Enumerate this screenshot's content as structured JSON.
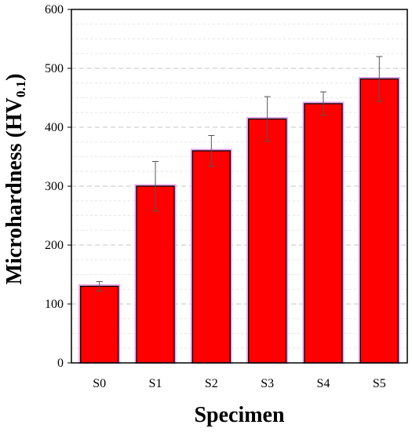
{
  "chart_data": {
    "type": "bar",
    "categories": [
      "S0",
      "S1",
      "S2",
      "S3",
      "S4",
      "S5"
    ],
    "values": [
      130,
      300,
      360,
      414,
      440,
      482
    ],
    "error": [
      8,
      42,
      26,
      38,
      20,
      38
    ],
    "title": "",
    "xlabel": "Specimen",
    "ylabel_main": "Microhardness (HV",
    "ylabel_sub": "0.1",
    "ylabel_close": ")",
    "ylim": [
      0,
      600
    ],
    "yticks": [
      0,
      100,
      200,
      300,
      400,
      500,
      600
    ],
    "grid": true,
    "colors": {
      "bar_fill": "#ff0000",
      "bar_stroke": "#000000",
      "bar_glow": "#e8a8e8",
      "grid": "#cfcfcf",
      "error": "#555555",
      "axis": "#000000"
    }
  }
}
